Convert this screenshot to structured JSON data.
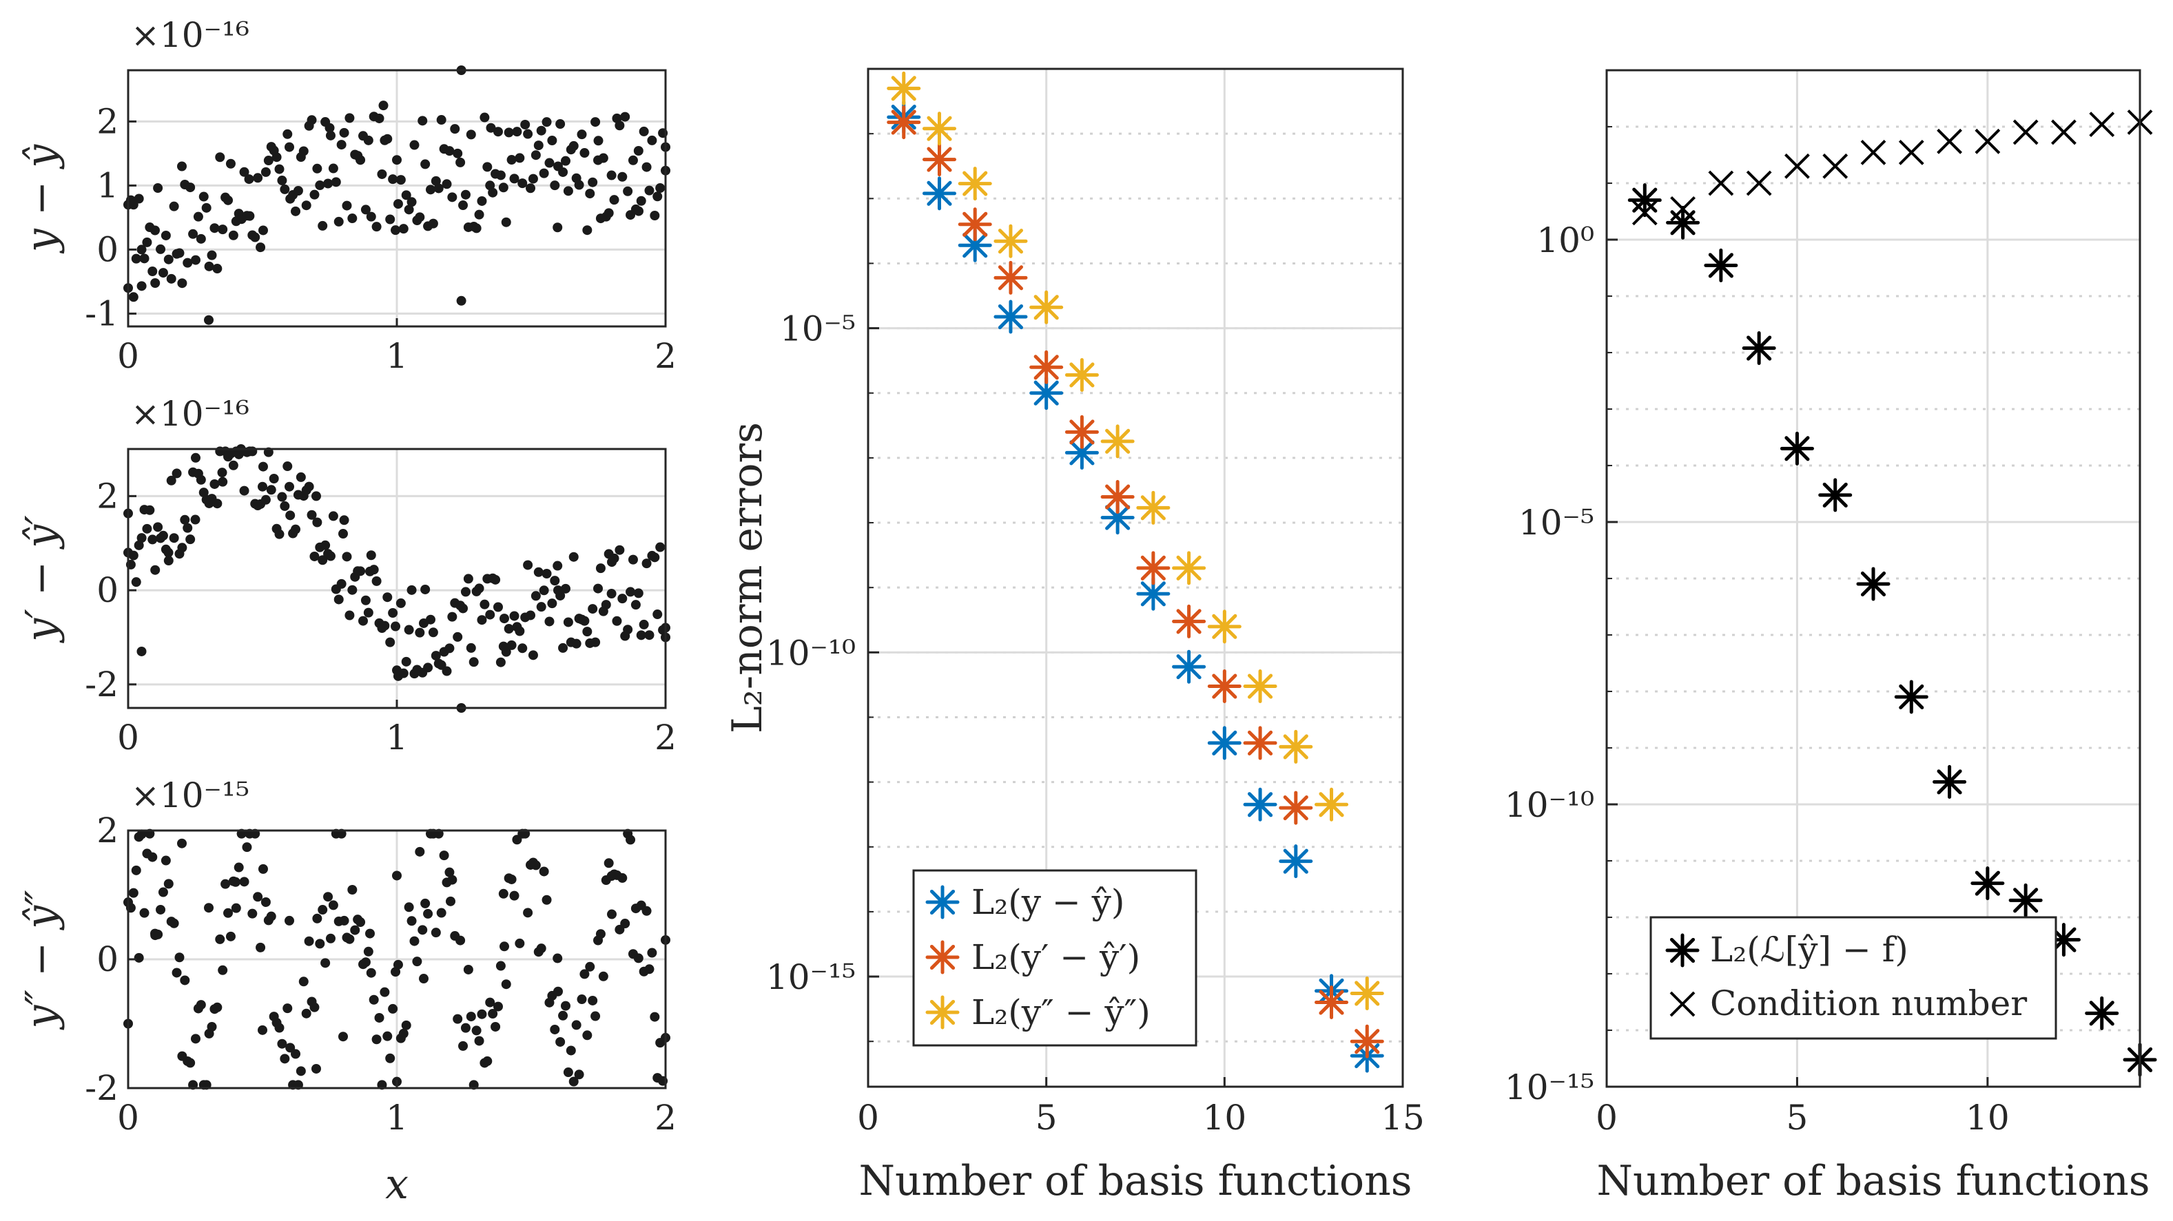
{
  "chart_data": [
    {
      "type": "scatter",
      "panel": "left-top",
      "ylabel": "y − ŷ",
      "multiplier": "×10⁻¹⁶",
      "xlim": [
        0,
        2
      ],
      "ylim": [
        -1.2,
        2.8
      ],
      "xticks": [
        0,
        1,
        2
      ],
      "yticks": [
        -1,
        0,
        1,
        2
      ],
      "grid": true,
      "description_of_points": "about 200 residual points, approximately -1 to 2.3 (x10^-16), trending from ~0 near x=0 to ~1.2 for x>0.6",
      "sample_points": [
        [
          0.0,
          -0.6
        ],
        [
          0.02,
          0.7
        ],
        [
          0.05,
          0.0
        ],
        [
          0.1,
          0.3
        ],
        [
          0.2,
          1.3
        ],
        [
          0.3,
          -1.1
        ],
        [
          0.45,
          1.1
        ],
        [
          0.6,
          1.6
        ],
        [
          0.75,
          1.9
        ],
        [
          0.95,
          2.25
        ],
        [
          1.0,
          1.4
        ],
        [
          1.24,
          2.8
        ],
        [
          1.24,
          -0.8
        ],
        [
          1.35,
          1.9
        ],
        [
          1.6,
          1.3
        ],
        [
          1.75,
          1.7
        ],
        [
          1.9,
          0.6
        ],
        [
          2.0,
          1.6
        ]
      ]
    },
    {
      "type": "scatter",
      "panel": "left-middle",
      "ylabel": "y′ − ŷ′",
      "multiplier": "×10⁻¹⁶",
      "xlim": [
        0,
        2
      ],
      "ylim": [
        -2.5,
        3.0
      ],
      "xticks": [
        0,
        1,
        2
      ],
      "yticks": [
        -2,
        0,
        2
      ],
      "grid": true,
      "description_of_points": "about 200 residual points rising from ~1 at x=0 to ~3 near x=0.4, decaying to ~-1 near x=1, then ~0 out to x=2",
      "sample_points": [
        [
          0.0,
          0.8
        ],
        [
          0.05,
          -1.3
        ],
        [
          0.15,
          0.8
        ],
        [
          0.25,
          1.5
        ],
        [
          0.35,
          2.5
        ],
        [
          0.42,
          3.0
        ],
        [
          0.5,
          2.2
        ],
        [
          0.6,
          2.2
        ],
        [
          0.7,
          2.0
        ],
        [
          0.8,
          1.2
        ],
        [
          0.9,
          0.4
        ],
        [
          1.0,
          -1.7
        ],
        [
          1.1,
          -0.7
        ],
        [
          1.24,
          -2.5
        ],
        [
          1.4,
          -0.6
        ],
        [
          1.6,
          0.0
        ],
        [
          1.8,
          0.6
        ],
        [
          2.0,
          -1.0
        ]
      ]
    },
    {
      "type": "scatter",
      "panel": "left-bottom",
      "ylabel": "y″ − ŷ″",
      "xlabel": "x",
      "multiplier": "×10⁻¹⁵",
      "xlim": [
        0,
        2
      ],
      "ylim": [
        -2,
        2
      ],
      "xticks": [
        0,
        1,
        2
      ],
      "yticks": [
        -2,
        0,
        2
      ],
      "grid": true,
      "description_of_points": "about 200 oscillating residual points between -2 and 2 (x10^-15)",
      "sample_points": [
        [
          0.0,
          -1.0
        ],
        [
          0.04,
          1.9
        ],
        [
          0.1,
          0.4
        ],
        [
          0.2,
          1.8
        ],
        [
          0.3,
          0.8
        ],
        [
          0.4,
          1.2
        ],
        [
          0.5,
          -1.1
        ],
        [
          0.6,
          0.6
        ],
        [
          0.7,
          -1.7
        ],
        [
          0.8,
          -1.2
        ],
        [
          0.9,
          0.4
        ],
        [
          1.0,
          1.3
        ],
        [
          1.0,
          -1.9
        ],
        [
          1.1,
          -0.3
        ],
        [
          1.2,
          0.9
        ],
        [
          1.4,
          0.2
        ],
        [
          1.6,
          -0.5
        ],
        [
          1.8,
          0.7
        ],
        [
          2.0,
          0.3
        ]
      ]
    },
    {
      "type": "scatter",
      "panel": "middle",
      "yscale": "log",
      "xlabel": "Number of basis functions",
      "ylabel": "L₂-norm errors",
      "xlim": [
        0,
        15
      ],
      "ylim": [
        2e-17,
        0.1
      ],
      "xticks": [
        0,
        5,
        10,
        15
      ],
      "yticks": [
        1e-15,
        1e-10,
        1e-05
      ],
      "ytick_labels": [
        "10⁻¹⁵",
        "10⁻¹⁰",
        "10⁻⁵"
      ],
      "grid": true,
      "legend_position": "bottom-left",
      "x": [
        1,
        2,
        3,
        4,
        5,
        6,
        7,
        8,
        9,
        10,
        11,
        12,
        13,
        14
      ],
      "series": [
        {
          "name": "L₂(y − ŷ)",
          "color": "#0072BD",
          "values": [
            0.018,
            0.0012,
            0.00019,
            1.5e-05,
            1e-06,
            1.2e-07,
            1.2e-08,
            8e-10,
            6e-11,
            4e-12,
            4.5e-13,
            6e-14,
            6e-16,
            6e-17
          ]
        },
        {
          "name": "L₂(y′ − ŷ′)",
          "color": "#D95319",
          "values": [
            0.015,
            0.004,
            0.0004,
            6e-05,
            2.5e-06,
            2.5e-07,
            2.5e-08,
            2e-09,
            3e-10,
            3e-11,
            4e-12,
            4e-13,
            4e-16,
            1e-16
          ]
        },
        {
          "name": "L₂(y″ − ŷ″)",
          "color": "#EDB120",
          "values": [
            0.05,
            0.012,
            0.0017,
            0.00022,
            2.1e-05,
            1.9e-06,
            1.8e-07,
            1.7e-08,
            2e-09,
            2.5e-10,
            3e-11,
            3.5e-12,
            4.5e-13,
            5.5e-16
          ]
        }
      ]
    },
    {
      "type": "scatter",
      "panel": "right",
      "yscale": "log",
      "xlabel": "Number of basis functions",
      "xlim": [
        0,
        14
      ],
      "ylim": [
        1e-15,
        1000.0
      ],
      "xticks": [
        0,
        5,
        10
      ],
      "yticks": [
        1e-15,
        1e-10,
        1e-05,
        1
      ],
      "ytick_labels": [
        "10⁻¹⁵",
        "10⁻¹⁰",
        "10⁻⁵",
        "10⁰"
      ],
      "grid": true,
      "legend_position": "bottom-right",
      "x": [
        1,
        2,
        3,
        4,
        5,
        6,
        7,
        8,
        9,
        10,
        11,
        12,
        13,
        14
      ],
      "series": [
        {
          "name": "L₂(ℒ[ŷ] − f)",
          "marker": "asterisk",
          "color": "#000000",
          "values": [
            5,
            2,
            0.35,
            0.012,
            0.0002,
            3e-05,
            8e-07,
            8e-09,
            2.5e-10,
            4e-12,
            2e-12,
            4e-13,
            2e-14,
            3e-15
          ]
        },
        {
          "name": "Condition number",
          "marker": "x",
          "color": "#000000",
          "values": [
            3,
            3.5,
            10,
            10,
            20,
            20,
            35,
            35,
            55,
            55,
            80,
            80,
            110,
            120
          ]
        }
      ]
    }
  ],
  "legends": {
    "middle": [
      "L₂(y − ŷ)",
      "L₂(y′ − ŷ′)",
      "L₂(y″ − ŷ″)"
    ],
    "right": [
      "L₂(ℒ[ŷ] − f)",
      "Condition number"
    ]
  }
}
